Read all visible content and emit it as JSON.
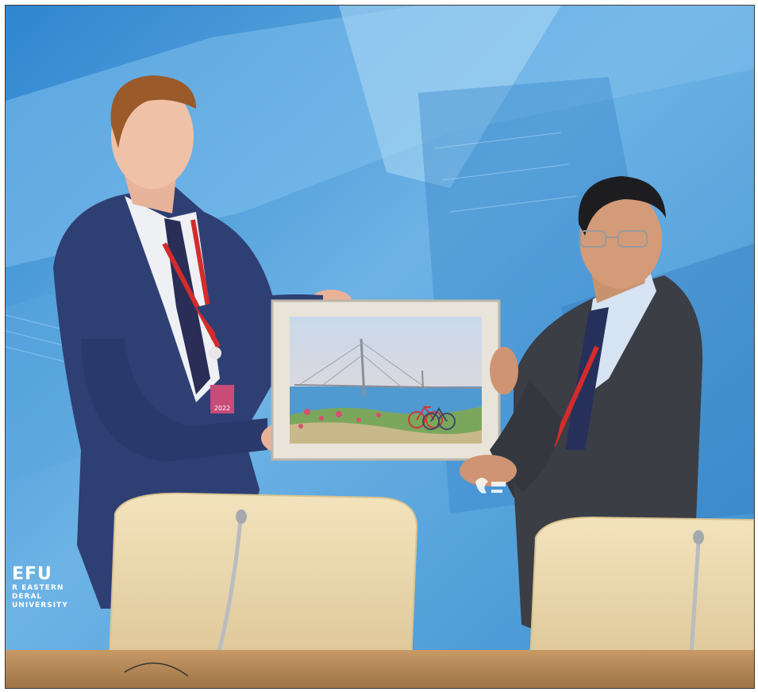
{
  "photo": {
    "description_alt": "",
    "logo_left": {
      "line1": "EFU",
      "line2": "R EASTERN",
      "line3": "DERAL",
      "line4": "UNIVERSITY"
    },
    "badge_left_year": "2022"
  },
  "colors": {
    "backdrop": "#3f8fd0",
    "suit_left": "#2e3f74",
    "suit_right": "#3b3e45",
    "lanyard": "#d42b2b",
    "chair": "#ecd9ae",
    "table": "#b88a57"
  }
}
